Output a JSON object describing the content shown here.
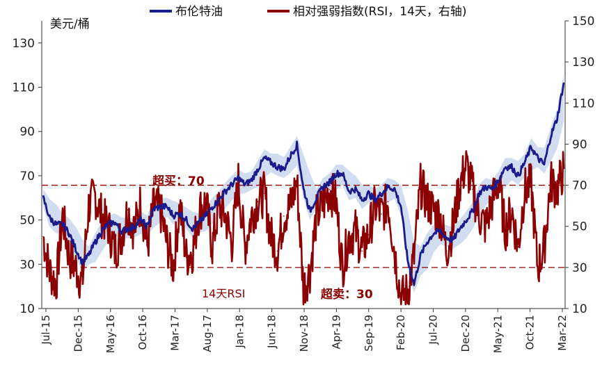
{
  "chart_data": {
    "type": "line",
    "title": "",
    "y_unit_label": "美元/桶",
    "left_axis": {
      "ylim": [
        10,
        140
      ],
      "ticks": [
        10,
        30,
        50,
        70,
        90,
        110,
        130
      ]
    },
    "right_axis": {
      "ylim": [
        10,
        150
      ],
      "ticks": [
        10,
        30,
        50,
        70,
        90,
        110,
        130,
        150
      ]
    },
    "x_tick_labels": [
      "Jul-15",
      "Dec-15",
      "May-16",
      "Oct-16",
      "Mar-17",
      "Aug-17",
      "Jan-18",
      "Jun-18",
      "Nov-18",
      "Apr-19",
      "Sep-19",
      "Feb-20",
      "Jul-20",
      "Dec-20",
      "May-21",
      "Oct-21",
      "Mar-22"
    ],
    "colors": {
      "brent": "#1a1a8c",
      "rsi": "#8b0000",
      "band": "#c8d6ec",
      "ref_line": "#8b0000"
    },
    "series": [
      {
        "name": "布伦特油",
        "axis": "left",
        "dates": [
          "Jul-15",
          "Aug-15",
          "Sep-15",
          "Oct-15",
          "Nov-15",
          "Dec-15",
          "Jan-16",
          "Feb-16",
          "Mar-16",
          "Apr-16",
          "May-16",
          "Jun-16",
          "Jul-16",
          "Aug-16",
          "Sep-16",
          "Oct-16",
          "Nov-16",
          "Dec-16",
          "Jan-17",
          "Feb-17",
          "Mar-17",
          "Apr-17",
          "May-17",
          "Jun-17",
          "Jul-17",
          "Aug-17",
          "Sep-17",
          "Oct-17",
          "Nov-17",
          "Dec-17",
          "Jan-18",
          "Feb-18",
          "Mar-18",
          "Apr-18",
          "May-18",
          "Jun-18",
          "Jul-18",
          "Aug-18",
          "Sep-18",
          "Oct-18",
          "Nov-18",
          "Dec-18",
          "Jan-19",
          "Feb-19",
          "Mar-19",
          "Apr-19",
          "May-19",
          "Jun-19",
          "Jul-19",
          "Aug-19",
          "Sep-19",
          "Oct-19",
          "Nov-19",
          "Dec-19",
          "Jan-20",
          "Feb-20",
          "Mar-20",
          "Apr-20",
          "May-20",
          "Jun-20",
          "Jul-20",
          "Aug-20",
          "Sep-20",
          "Oct-20",
          "Nov-20",
          "Dec-20",
          "Jan-21",
          "Feb-21",
          "Mar-21",
          "Apr-21",
          "May-21",
          "Jun-21",
          "Jul-21",
          "Aug-21",
          "Sep-21",
          "Oct-21",
          "Nov-21",
          "Dec-21",
          "Jan-22",
          "Feb-22",
          "Mar-22"
        ],
        "values": [
          60,
          51,
          48,
          48,
          44,
          37,
          31,
          34,
          40,
          45,
          48,
          49,
          45,
          46,
          47,
          50,
          47,
          55,
          56,
          56,
          52,
          53,
          50,
          46,
          49,
          52,
          56,
          59,
          63,
          66,
          69,
          66,
          68,
          73,
          78,
          76,
          74,
          73,
          79,
          84,
          64,
          54,
          60,
          65,
          67,
          71,
          71,
          63,
          64,
          59,
          62,
          59,
          62,
          65,
          64,
          56,
          32,
          21,
          34,
          40,
          44,
          45,
          42,
          41,
          46,
          50,
          54,
          62,
          65,
          64,
          68,
          74,
          74,
          70,
          76,
          83,
          78,
          75,
          88,
          96,
          112
        ]
      },
      {
        "name": "相对强弱指数(RSI，14天，右轴)",
        "axis": "right",
        "dates": [
          "Jul-15",
          "Aug-15",
          "Sep-15",
          "Oct-15",
          "Nov-15",
          "Dec-15",
          "Jan-16",
          "Feb-16",
          "Mar-16",
          "Apr-16",
          "May-16",
          "Jun-16",
          "Jul-16",
          "Aug-16",
          "Sep-16",
          "Oct-16",
          "Nov-16",
          "Dec-16",
          "Jan-17",
          "Feb-17",
          "Mar-17",
          "Apr-17",
          "May-17",
          "Jun-17",
          "Jul-17",
          "Aug-17",
          "Sep-17",
          "Oct-17",
          "Nov-17",
          "Dec-17",
          "Jan-18",
          "Feb-18",
          "Mar-18",
          "Apr-18",
          "May-18",
          "Jun-18",
          "Jul-18",
          "Aug-18",
          "Sep-18",
          "Oct-18",
          "Nov-18",
          "Dec-18",
          "Jan-19",
          "Feb-19",
          "Mar-19",
          "Apr-19",
          "May-19",
          "Jun-19",
          "Jul-19",
          "Aug-19",
          "Sep-19",
          "Oct-19",
          "Nov-19",
          "Dec-19",
          "Jan-20",
          "Feb-20",
          "Mar-20",
          "Apr-20",
          "May-20",
          "Jun-20",
          "Jul-20",
          "Aug-20",
          "Sep-20",
          "Oct-20",
          "Nov-20",
          "Dec-20",
          "Jan-21",
          "Feb-21",
          "Mar-21",
          "Apr-21",
          "May-21",
          "Jun-21",
          "Jul-21",
          "Aug-21",
          "Sep-21",
          "Oct-21",
          "Nov-21",
          "Dec-21",
          "Jan-22",
          "Feb-22",
          "Mar-22"
        ],
        "values": [
          45,
          28,
          22,
          55,
          35,
          30,
          22,
          60,
          65,
          55,
          50,
          38,
          45,
          58,
          48,
          62,
          40,
          60,
          58,
          42,
          30,
          60,
          35,
          38,
          58,
          62,
          40,
          60,
          55,
          42,
          72,
          40,
          55,
          62,
          66,
          45,
          38,
          55,
          60,
          72,
          20,
          28,
          55,
          60,
          68,
          62,
          30,
          45,
          48,
          38,
          46,
          60,
          56,
          62,
          38,
          15,
          18,
          35,
          70,
          62,
          58,
          55,
          38,
          50,
          70,
          80,
          68,
          55,
          50,
          62,
          72,
          48,
          58,
          40,
          68,
          70,
          30,
          40,
          72,
          68,
          78
        ]
      }
    ],
    "reference_lines": [
      {
        "axis": "right",
        "value": 70,
        "label": "超买：70"
      },
      {
        "axis": "right",
        "value": 30,
        "label": "超卖：30"
      }
    ],
    "annotations": {
      "rsi_label": "14天RSI"
    },
    "legend": {
      "position": "top"
    }
  }
}
